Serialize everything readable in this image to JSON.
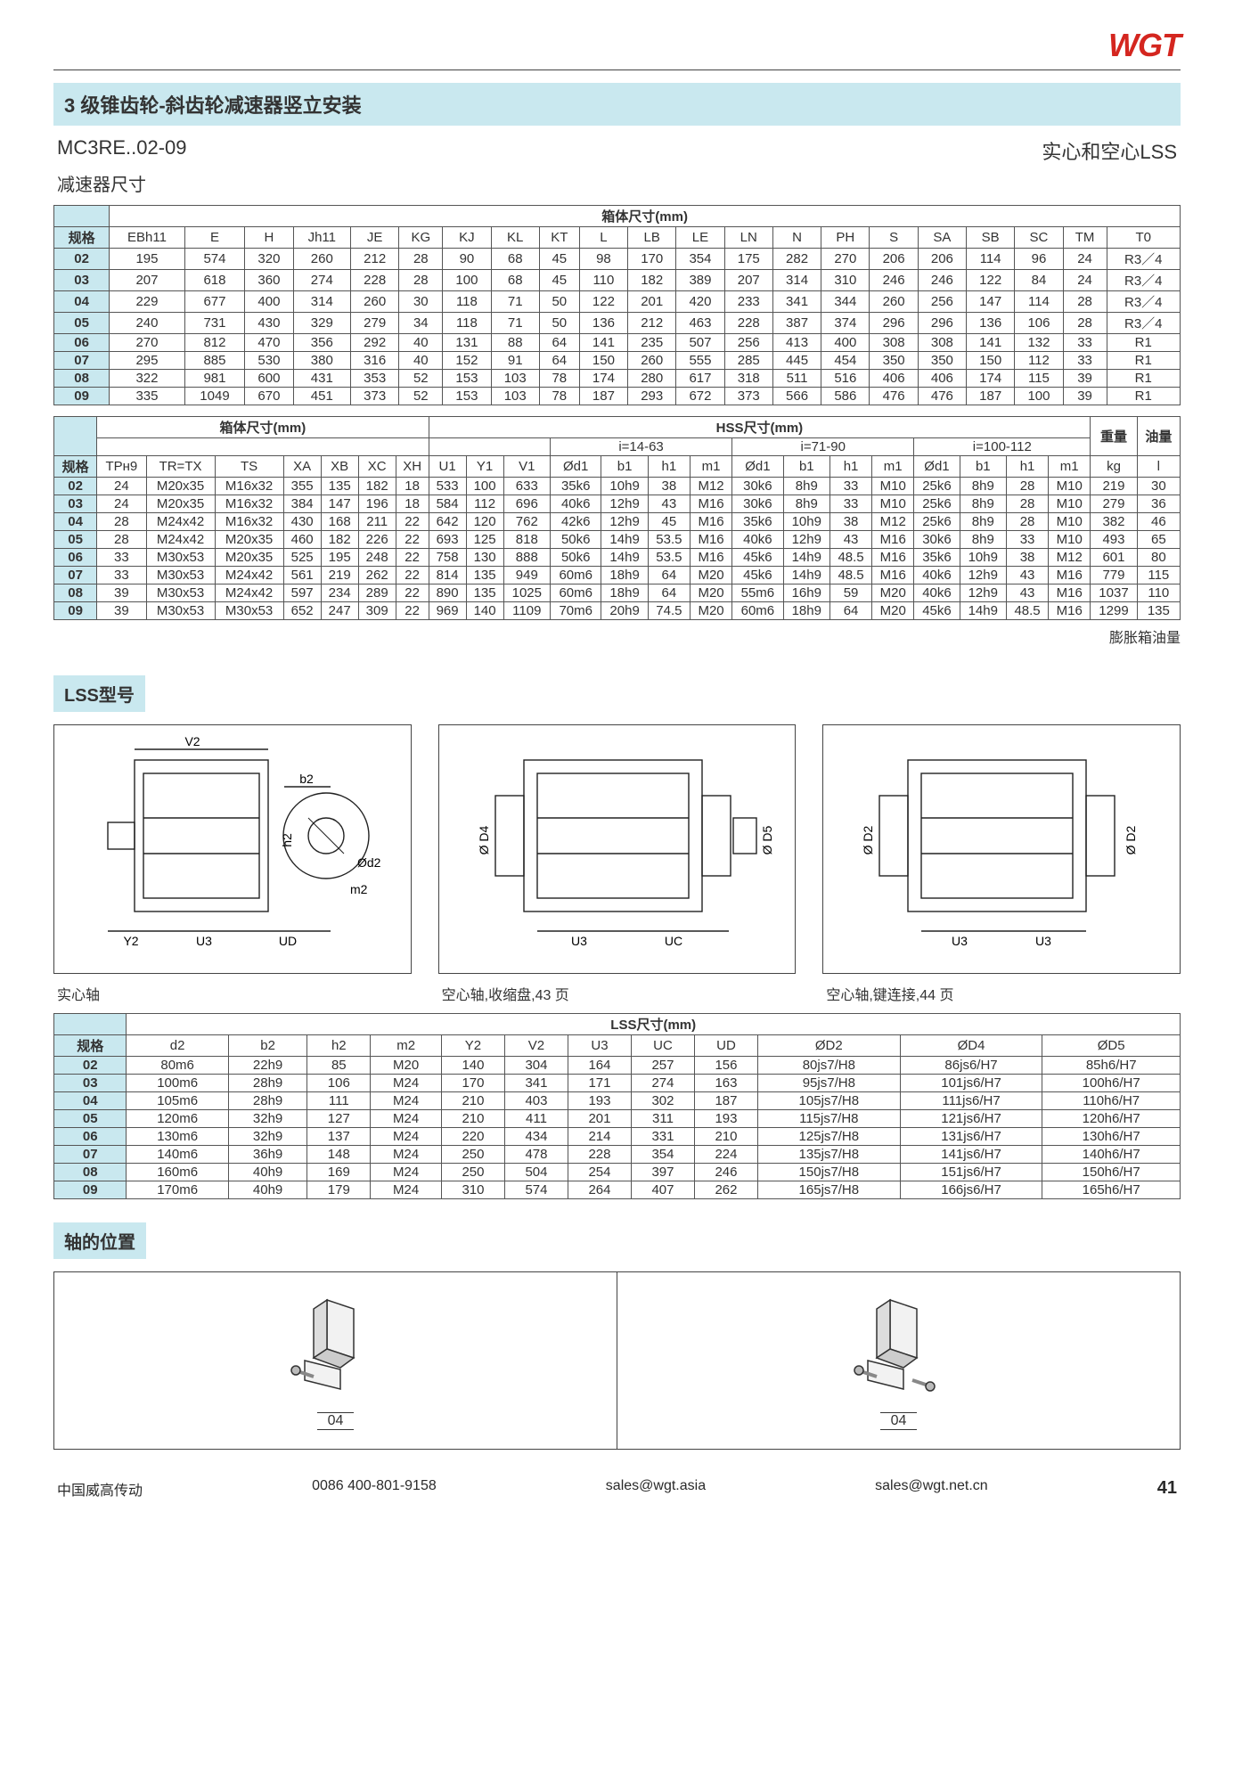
{
  "brand": "WGT",
  "title": "3 级锥齿轮-斜齿轮减速器竖立安装",
  "model_range": "MC3RE..02-09",
  "subtitle_right": "实心和空心LSS",
  "dimensions_heading": "减速器尺寸",
  "table1_supertitle": "箱体尺寸(mm)",
  "table1_headers": [
    "规格",
    "EBh11",
    "E",
    "H",
    "Jh11",
    "JE",
    "KG",
    "KJ",
    "KL",
    "KT",
    "L",
    "LB",
    "LE",
    "LN",
    "N",
    "PH",
    "S",
    "SA",
    "SB",
    "SC",
    "TM",
    "T0"
  ],
  "table1_rows": [
    [
      "02",
      "195",
      "574",
      "320",
      "260",
      "212",
      "28",
      "90",
      "68",
      "45",
      "98",
      "170",
      "354",
      "175",
      "282",
      "270",
      "206",
      "206",
      "114",
      "96",
      "24",
      "R3／4"
    ],
    [
      "03",
      "207",
      "618",
      "360",
      "274",
      "228",
      "28",
      "100",
      "68",
      "45",
      "110",
      "182",
      "389",
      "207",
      "314",
      "310",
      "246",
      "246",
      "122",
      "84",
      "24",
      "R3／4"
    ],
    [
      "04",
      "229",
      "677",
      "400",
      "314",
      "260",
      "30",
      "118",
      "71",
      "50",
      "122",
      "201",
      "420",
      "233",
      "341",
      "344",
      "260",
      "256",
      "147",
      "114",
      "28",
      "R3／4"
    ],
    [
      "05",
      "240",
      "731",
      "430",
      "329",
      "279",
      "34",
      "118",
      "71",
      "50",
      "136",
      "212",
      "463",
      "228",
      "387",
      "374",
      "296",
      "296",
      "136",
      "106",
      "28",
      "R3／4"
    ],
    [
      "06",
      "270",
      "812",
      "470",
      "356",
      "292",
      "40",
      "131",
      "88",
      "64",
      "141",
      "235",
      "507",
      "256",
      "413",
      "400",
      "308",
      "308",
      "141",
      "132",
      "33",
      "R1"
    ],
    [
      "07",
      "295",
      "885",
      "530",
      "380",
      "316",
      "40",
      "152",
      "91",
      "64",
      "150",
      "260",
      "555",
      "285",
      "445",
      "454",
      "350",
      "350",
      "150",
      "112",
      "33",
      "R1"
    ],
    [
      "08",
      "322",
      "981",
      "600",
      "431",
      "353",
      "52",
      "153",
      "103",
      "78",
      "174",
      "280",
      "617",
      "318",
      "511",
      "516",
      "406",
      "406",
      "174",
      "115",
      "39",
      "R1"
    ],
    [
      "09",
      "335",
      "1049",
      "670",
      "451",
      "373",
      "52",
      "153",
      "103",
      "78",
      "187",
      "293",
      "672",
      "373",
      "566",
      "586",
      "476",
      "476",
      "187",
      "100",
      "39",
      "R1"
    ]
  ],
  "table2_super_left": "箱体尺寸(mm)",
  "table2_super_right": "HSS尺寸(mm)",
  "table2_group_labels": [
    "i=14-63",
    "i=71-90",
    "i=100-112"
  ],
  "table2_right_cols": [
    "重量",
    "油量"
  ],
  "table2_headers_left": [
    "规格",
    "TPн9",
    "TR=TX",
    "TS",
    "XA",
    "XB",
    "XC",
    "XH"
  ],
  "table2_headers_mid": [
    "U1",
    "Y1",
    "V1"
  ],
  "table2_headers_group": [
    "Ød1",
    "b1",
    "h1",
    "m1"
  ],
  "table2_headers_right": [
    "kg",
    "l"
  ],
  "table2_rows": [
    [
      "02",
      "24",
      "M20x35",
      "M16x32",
      "355",
      "135",
      "182",
      "18",
      "533",
      "100",
      "633",
      "35k6",
      "10h9",
      "38",
      "M12",
      "30k6",
      "8h9",
      "33",
      "M10",
      "25k6",
      "8h9",
      "28",
      "M10",
      "219",
      "30"
    ],
    [
      "03",
      "24",
      "M20x35",
      "M16x32",
      "384",
      "147",
      "196",
      "18",
      "584",
      "112",
      "696",
      "40k6",
      "12h9",
      "43",
      "M16",
      "30k6",
      "8h9",
      "33",
      "M10",
      "25k6",
      "8h9",
      "28",
      "M10",
      "279",
      "36"
    ],
    [
      "04",
      "28",
      "M24x42",
      "M16x32",
      "430",
      "168",
      "211",
      "22",
      "642",
      "120",
      "762",
      "42k6",
      "12h9",
      "45",
      "M16",
      "35k6",
      "10h9",
      "38",
      "M12",
      "25k6",
      "8h9",
      "28",
      "M10",
      "382",
      "46"
    ],
    [
      "05",
      "28",
      "M24x42",
      "M20x35",
      "460",
      "182",
      "226",
      "22",
      "693",
      "125",
      "818",
      "50k6",
      "14h9",
      "53.5",
      "M16",
      "40k6",
      "12h9",
      "43",
      "M16",
      "30k6",
      "8h9",
      "33",
      "M10",
      "493",
      "65"
    ],
    [
      "06",
      "33",
      "M30x53",
      "M20x35",
      "525",
      "195",
      "248",
      "22",
      "758",
      "130",
      "888",
      "50k6",
      "14h9",
      "53.5",
      "M16",
      "45k6",
      "14h9",
      "48.5",
      "M16",
      "35k6",
      "10h9",
      "38",
      "M12",
      "601",
      "80"
    ],
    [
      "07",
      "33",
      "M30x53",
      "M24x42",
      "561",
      "219",
      "262",
      "22",
      "814",
      "135",
      "949",
      "60m6",
      "18h9",
      "64",
      "M20",
      "45k6",
      "14h9",
      "48.5",
      "M16",
      "40k6",
      "12h9",
      "43",
      "M16",
      "779",
      "115"
    ],
    [
      "08",
      "39",
      "M30x53",
      "M24x42",
      "597",
      "234",
      "289",
      "22",
      "890",
      "135",
      "1025",
      "60m6",
      "18h9",
      "64",
      "M20",
      "55m6",
      "16h9",
      "59",
      "M20",
      "40k6",
      "12h9",
      "43",
      "M16",
      "1037",
      "110"
    ],
    [
      "09",
      "39",
      "M30x53",
      "M30x53",
      "652",
      "247",
      "309",
      "22",
      "969",
      "140",
      "1109",
      "70m6",
      "20h9",
      "74.5",
      "M20",
      "60m6",
      "18h9",
      "64",
      "M20",
      "45k6",
      "14h9",
      "48.5",
      "M16",
      "1299",
      "135"
    ]
  ],
  "table2_footnote": "膨胀箱油量",
  "lss_section": "LSS型号",
  "drawing_captions": [
    "实心轴",
    "空心轴,收缩盘,43 页",
    "空心轴,键连接,44 页"
  ],
  "drawing_labels": {
    "d1": [
      "V2",
      "b2",
      "h2",
      "Ød2",
      "m2",
      "Y2",
      "U3",
      "UD"
    ],
    "d2": [
      "Ø D4",
      "Ø D5",
      "U3",
      "UC"
    ],
    "d3": [
      "Ø D2",
      "Ø D2",
      "U3",
      "U3"
    ]
  },
  "table3_supertitle": "LSS尺寸(mm)",
  "table3_headers": [
    "规格",
    "d2",
    "b2",
    "h2",
    "m2",
    "Y2",
    "V2",
    "U3",
    "UC",
    "UD",
    "ØD2",
    "ØD4",
    "ØD5"
  ],
  "table3_rows": [
    [
      "02",
      "80m6",
      "22h9",
      "85",
      "M20",
      "140",
      "304",
      "164",
      "257",
      "156",
      "80js7/H8",
      "86js6/H7",
      "85h6/H7"
    ],
    [
      "03",
      "100m6",
      "28h9",
      "106",
      "M24",
      "170",
      "341",
      "171",
      "274",
      "163",
      "95js7/H8",
      "101js6/H7",
      "100h6/H7"
    ],
    [
      "04",
      "105m6",
      "28h9",
      "111",
      "M24",
      "210",
      "403",
      "193",
      "302",
      "187",
      "105js7/H8",
      "111js6/H7",
      "110h6/H7"
    ],
    [
      "05",
      "120m6",
      "32h9",
      "127",
      "M24",
      "210",
      "411",
      "201",
      "311",
      "193",
      "115js7/H8",
      "121js6/H7",
      "120h6/H7"
    ],
    [
      "06",
      "130m6",
      "32h9",
      "137",
      "M24",
      "220",
      "434",
      "214",
      "331",
      "210",
      "125js7/H8",
      "131js6/H7",
      "130h6/H7"
    ],
    [
      "07",
      "140m6",
      "36h9",
      "148",
      "M24",
      "250",
      "478",
      "228",
      "354",
      "224",
      "135js7/H8",
      "141js6/H7",
      "140h6/H7"
    ],
    [
      "08",
      "160m6",
      "40h9",
      "169",
      "M24",
      "250",
      "504",
      "254",
      "397",
      "246",
      "150js7/H8",
      "151js6/H7",
      "150h6/H7"
    ],
    [
      "09",
      "170m6",
      "40h9",
      "179",
      "M24",
      "310",
      "574",
      "264",
      "407",
      "262",
      "165js7/H8",
      "166js6/H7",
      "165h6/H7"
    ]
  ],
  "shaft_section": "轴的位置",
  "shaft_labels": [
    "04",
    "04"
  ],
  "footer": {
    "company": "中国威高传动",
    "phone": "0086 400-801-9158",
    "email1": "sales@wgt.asia",
    "email2": "sales@wgt.net.cn",
    "page": "41"
  }
}
